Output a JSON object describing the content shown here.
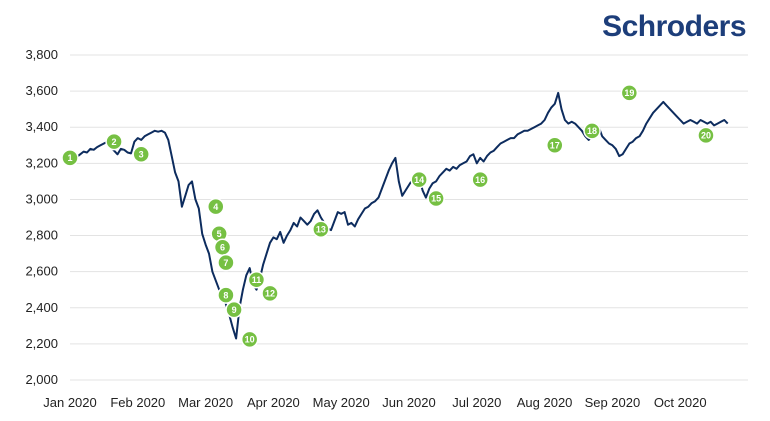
{
  "brand": {
    "name": "Schroders",
    "color": "#1d3e7a"
  },
  "chart_data": {
    "type": "line",
    "title": "",
    "xlabel": "",
    "ylabel": "",
    "ylim": [
      2000,
      3800
    ],
    "yticks": [
      2000,
      2200,
      2400,
      2600,
      2800,
      3000,
      3200,
      3400,
      3600,
      3800
    ],
    "ytick_labels": [
      "2,000",
      "2,200",
      "2,400",
      "2,600",
      "2,800",
      "3,000",
      "3,200",
      "3,400",
      "3,600",
      "3,800"
    ],
    "xlim": [
      0,
      10
    ],
    "xticks": [
      0,
      1,
      2,
      3,
      4,
      5,
      6,
      7,
      8,
      9
    ],
    "xtick_labels": [
      "Jan 2020",
      "Feb 2020",
      "Mar 2020",
      "Apr 2020",
      "May 2020",
      "Jun 2020",
      "Jul 2020",
      "Aug 2020",
      "Sep 2020",
      "Oct 2020"
    ],
    "grid": true,
    "line_color": "#0d2c5e",
    "marker_color": "#76c043",
    "series": [
      {
        "x": [
          0.0,
          0.05,
          0.1,
          0.15,
          0.2,
          0.25,
          0.3,
          0.35,
          0.4,
          0.45,
          0.5,
          0.55,
          0.6,
          0.65,
          0.7,
          0.75,
          0.8,
          0.85,
          0.9,
          0.95,
          1.0,
          1.05,
          1.1,
          1.15,
          1.2,
          1.25,
          1.3,
          1.35,
          1.4,
          1.45,
          1.5,
          1.55,
          1.6,
          1.65,
          1.7,
          1.75,
          1.8,
          1.85,
          1.9,
          1.95,
          2.0,
          2.05,
          2.1,
          2.15,
          2.2,
          2.25,
          2.3,
          2.35,
          2.4,
          2.45,
          2.5,
          2.55,
          2.6,
          2.65,
          2.7,
          2.75,
          2.8,
          2.85,
          2.9,
          2.95,
          3.0,
          3.05,
          3.1,
          3.15,
          3.2,
          3.25,
          3.3,
          3.35,
          3.4,
          3.45,
          3.5,
          3.55,
          3.6,
          3.65,
          3.7,
          3.75,
          3.8,
          3.85,
          3.9,
          3.95,
          4.0,
          4.05,
          4.1,
          4.15,
          4.2,
          4.25,
          4.3,
          4.35,
          4.4,
          4.45,
          4.5,
          4.55,
          4.6,
          4.65,
          4.7,
          4.75,
          4.8,
          4.85,
          4.9,
          4.95,
          5.0,
          5.05,
          5.1,
          5.15,
          5.2,
          5.25,
          5.3,
          5.35,
          5.4,
          5.45,
          5.5,
          5.55,
          5.6,
          5.65,
          5.7,
          5.75,
          5.8,
          5.85,
          5.9,
          5.95,
          6.0,
          6.05,
          6.1,
          6.15,
          6.2,
          6.25,
          6.3,
          6.35,
          6.4,
          6.45,
          6.5,
          6.55,
          6.6,
          6.65,
          6.7,
          6.75,
          6.8,
          6.85,
          6.9,
          6.95,
          7.0,
          7.05,
          7.1,
          7.15,
          7.2,
          7.25,
          7.3,
          7.35,
          7.4,
          7.45,
          7.5,
          7.55,
          7.6,
          7.65,
          7.7,
          7.75,
          7.8,
          7.85,
          7.9,
          7.95,
          8.0,
          8.05,
          8.1,
          8.15,
          8.2,
          8.25,
          8.3,
          8.35,
          8.4,
          8.45,
          8.5,
          8.55,
          8.6,
          8.65,
          8.7,
          8.75,
          8.8,
          8.85,
          8.9,
          8.95,
          9.0,
          9.05,
          9.1,
          9.15,
          9.2,
          9.25,
          9.3,
          9.35,
          9.4,
          9.45,
          9.5,
          9.55,
          9.6,
          9.65,
          9.7
        ],
        "y": [
          3230,
          3240,
          3235,
          3250,
          3265,
          3260,
          3280,
          3275,
          3290,
          3300,
          3310,
          3320,
          3290,
          3270,
          3250,
          3280,
          3275,
          3260,
          3255,
          3320,
          3340,
          3330,
          3350,
          3360,
          3370,
          3380,
          3375,
          3380,
          3370,
          3330,
          3240,
          3150,
          3100,
          2960,
          3020,
          3080,
          3100,
          3000,
          2950,
          2810,
          2750,
          2700,
          2600,
          2550,
          2500,
          2480,
          2420,
          2360,
          2290,
          2230,
          2400,
          2500,
          2580,
          2620,
          2530,
          2500,
          2560,
          2640,
          2700,
          2760,
          2790,
          2780,
          2820,
          2760,
          2800,
          2830,
          2870,
          2850,
          2900,
          2880,
          2860,
          2880,
          2920,
          2940,
          2900,
          2870,
          2840,
          2830,
          2880,
          2930,
          2920,
          2930,
          2860,
          2870,
          2850,
          2890,
          2920,
          2950,
          2960,
          2980,
          2990,
          3010,
          3060,
          3110,
          3160,
          3200,
          3230,
          3100,
          3020,
          3050,
          3080,
          3110,
          3100,
          3120,
          3050,
          3010,
          3060,
          3090,
          3100,
          3130,
          3150,
          3170,
          3160,
          3180,
          3170,
          3190,
          3200,
          3210,
          3240,
          3250,
          3200,
          3230,
          3210,
          3240,
          3260,
          3270,
          3290,
          3310,
          3320,
          3330,
          3340,
          3340,
          3360,
          3370,
          3380,
          3380,
          3390,
          3400,
          3410,
          3420,
          3440,
          3480,
          3510,
          3530,
          3590,
          3500,
          3440,
          3420,
          3430,
          3420,
          3400,
          3380,
          3350,
          3330,
          3350,
          3380,
          3400,
          3350,
          3330,
          3310,
          3300,
          3280,
          3240,
          3250,
          3280,
          3310,
          3320,
          3340,
          3350,
          3380,
          3420,
          3450,
          3480,
          3500,
          3520,
          3540,
          3520,
          3500,
          3480,
          3460,
          3440,
          3420,
          3430,
          3440,
          3430,
          3420,
          3440,
          3430,
          3420,
          3430,
          3410,
          3420,
          3430,
          3440,
          3420
        ]
      }
    ],
    "markers": [
      {
        "label": "1",
        "x": 0.0,
        "y": 3230
      },
      {
        "label": "2",
        "x": 0.65,
        "y": 3320
      },
      {
        "label": "3",
        "x": 1.05,
        "y": 3250
      },
      {
        "label": "4",
        "x": 2.15,
        "y": 2960
      },
      {
        "label": "5",
        "x": 2.2,
        "y": 2810
      },
      {
        "label": "6",
        "x": 2.25,
        "y": 2735
      },
      {
        "label": "7",
        "x": 2.3,
        "y": 2650
      },
      {
        "label": "8",
        "x": 2.3,
        "y": 2470
      },
      {
        "label": "9",
        "x": 2.42,
        "y": 2390
      },
      {
        "label": "10",
        "x": 2.65,
        "y": 2225
      },
      {
        "label": "11",
        "x": 2.75,
        "y": 2555
      },
      {
        "label": "12",
        "x": 2.95,
        "y": 2480
      },
      {
        "label": "13",
        "x": 3.7,
        "y": 2835
      },
      {
        "label": "14",
        "x": 5.15,
        "y": 3110
      },
      {
        "label": "15",
        "x": 5.4,
        "y": 3005
      },
      {
        "label": "16",
        "x": 6.05,
        "y": 3110
      },
      {
        "label": "17",
        "x": 7.15,
        "y": 3300
      },
      {
        "label": "18",
        "x": 7.7,
        "y": 3380
      },
      {
        "label": "19",
        "x": 8.25,
        "y": 3590
      },
      {
        "label": "20",
        "x": 9.38,
        "y": 3355
      }
    ]
  }
}
